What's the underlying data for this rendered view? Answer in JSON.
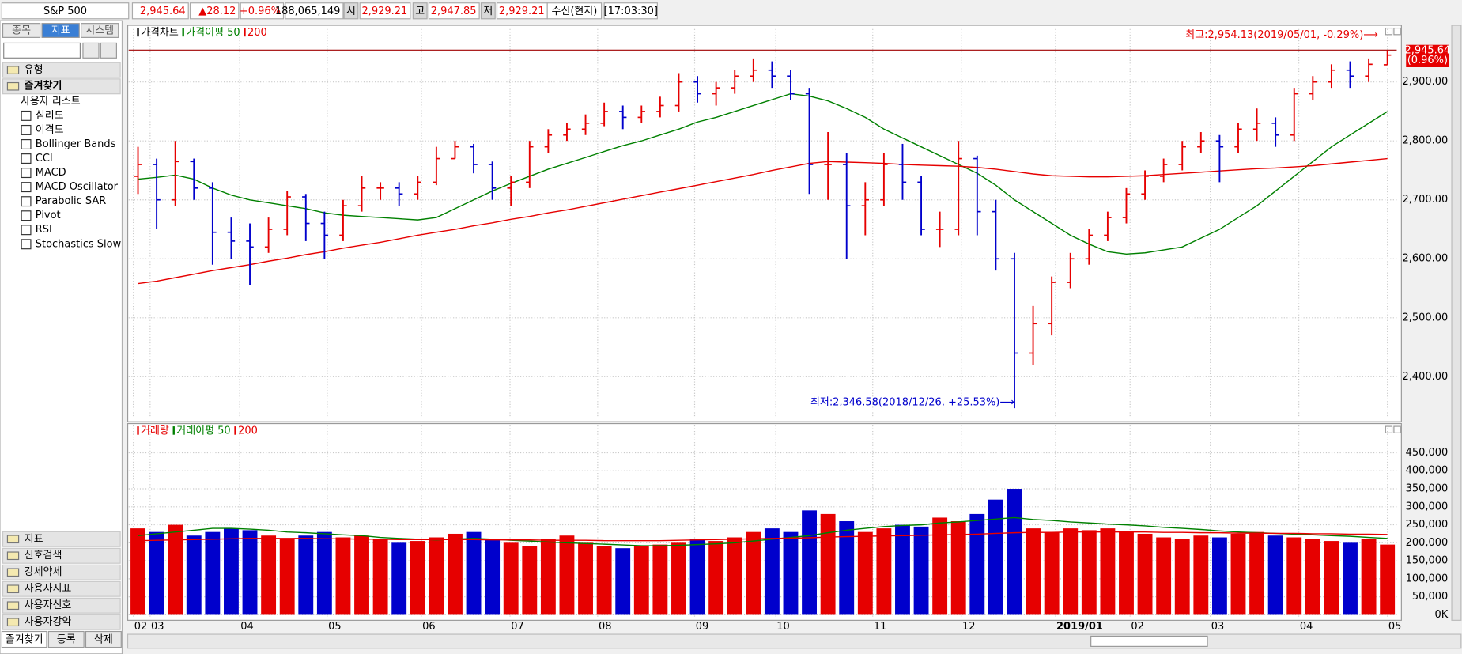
{
  "toolbar": {
    "symbol": "S&P 500",
    "price": "2,945.64",
    "change": "▲28.12",
    "pct": "+0.96%",
    "volume": "188,065,149",
    "open_label": "시",
    "open": "2,929.21",
    "high_label": "고",
    "high": "2,947.85",
    "low_label": "저",
    "low": "2,929.21",
    "status": "수신(현지)",
    "time": "[17:03:30]"
  },
  "sidebar": {
    "tabs": [
      "종목",
      "지표",
      "시스템"
    ],
    "groups_top": [
      "유형",
      "즐겨찾기"
    ],
    "list_title": "사용자 리스트",
    "items": [
      "심리도",
      "이격도",
      "Bollinger Bands",
      "CCI",
      "MACD",
      "MACD Oscillator",
      "Parabolic SAR",
      "Pivot",
      "RSI",
      "Stochastics Slow"
    ],
    "groups_bottom": [
      "지표",
      "신호검색",
      "강세약세",
      "사용자지표",
      "사용자신호",
      "사용자강약"
    ],
    "bottom_tabs": [
      "즐겨찾기",
      "등록",
      "삭제"
    ]
  },
  "chart_data": [
    {
      "type": "ohlc",
      "up_color": "#e60000",
      "down_color": "#0000cc",
      "grid": true,
      "xlim": [
        0,
        68
      ],
      "ylim": [
        2330,
        2974
      ],
      "yticks": [
        {
          "value": 2400,
          "label": "2,400.00"
        },
        {
          "value": 2500,
          "label": "2,500.00"
        },
        {
          "value": 2600,
          "label": "2,600.00"
        },
        {
          "value": 2700,
          "label": "2,700.00"
        },
        {
          "value": 2800,
          "label": "2,800.00"
        },
        {
          "value": 2900,
          "label": "2,900.00"
        }
      ],
      "xticks": [
        {
          "value": 0.25,
          "label": "02"
        },
        {
          "value": 1.15,
          "label": "03"
        },
        {
          "value": 5.95,
          "label": "04"
        },
        {
          "value": 10.65,
          "label": "05"
        },
        {
          "value": 15.7,
          "label": "06"
        },
        {
          "value": 20.45,
          "label": "07"
        },
        {
          "value": 25.15,
          "label": "08"
        },
        {
          "value": 30.35,
          "label": "09"
        },
        {
          "value": 34.7,
          "label": "10"
        },
        {
          "value": 39.9,
          "label": "11"
        },
        {
          "value": 44.65,
          "label": "12"
        },
        {
          "value": 49.7,
          "label": "2019/01"
        },
        {
          "value": 53.7,
          "label": "02"
        },
        {
          "value": 58,
          "label": "03"
        },
        {
          "value": 62.75,
          "label": "04"
        },
        {
          "value": 67.5,
          "label": "05"
        }
      ],
      "high_line": 2954.13,
      "high_line_color": "#a00000",
      "last_price_label": "2,945.64",
      "last_pct_label": "(0.96%)",
      "annotations": [
        {
          "text": "최고:2,954.13(2019/05/01, -0.29%)⟶",
          "color": "#e60000"
        },
        {
          "text": "최저:2,346.58(2018/12/26, +25.53%)⟶",
          "color": "#0000cc"
        }
      ],
      "series": [
        {
          "name": "가격차트",
          "color": "#000000",
          "open": [
            2740,
            2760,
            2700,
            2765,
            2720,
            2645,
            2630,
            2620,
            2650,
            2705,
            2660,
            2640,
            2690,
            2720,
            2720,
            2710,
            2730,
            2770,
            2790,
            2760,
            2720,
            2730,
            2790,
            2810,
            2820,
            2830,
            2850,
            2840,
            2850,
            2860,
            2900,
            2880,
            2890,
            2910,
            2920,
            2910,
            2880,
            2760,
            2760,
            2690,
            2700,
            2760,
            2730,
            2650,
            2650,
            2770,
            2680,
            2600,
            2440,
            2490,
            2560,
            2600,
            2640,
            2670,
            2710,
            2740,
            2760,
            2790,
            2800,
            2790,
            2820,
            2830,
            2810,
            2880,
            2900,
            2920,
            2910,
            2929.21
          ],
          "high": [
            2790,
            2770,
            2800,
            2770,
            2730,
            2670,
            2660,
            2670,
            2715,
            2710,
            2680,
            2700,
            2740,
            2730,
            2730,
            2740,
            2790,
            2800,
            2795,
            2765,
            2740,
            2800,
            2820,
            2830,
            2845,
            2865,
            2860,
            2860,
            2875,
            2915,
            2910,
            2900,
            2920,
            2940,
            2935,
            2920,
            2890,
            2815,
            2780,
            2730,
            2780,
            2795,
            2740,
            2680,
            2800,
            2775,
            2700,
            2610,
            2520,
            2570,
            2610,
            2650,
            2680,
            2720,
            2750,
            2770,
            2800,
            2815,
            2810,
            2830,
            2855,
            2840,
            2890,
            2910,
            2930,
            2935,
            2940,
            2954.13
          ],
          "low": [
            2710,
            2650,
            2690,
            2700,
            2590,
            2600,
            2555,
            2610,
            2640,
            2630,
            2600,
            2630,
            2680,
            2700,
            2690,
            2700,
            2725,
            2770,
            2745,
            2700,
            2690,
            2720,
            2780,
            2800,
            2810,
            2825,
            2820,
            2830,
            2840,
            2850,
            2865,
            2860,
            2880,
            2900,
            2890,
            2870,
            2710,
            2700,
            2600,
            2640,
            2690,
            2700,
            2640,
            2620,
            2640,
            2640,
            2580,
            2346.58,
            2420,
            2470,
            2550,
            2590,
            2630,
            2660,
            2700,
            2730,
            2750,
            2780,
            2730,
            2780,
            2800,
            2790,
            2800,
            2870,
            2890,
            2890,
            2900,
            2929.21
          ],
          "close": [
            2760,
            2700,
            2765,
            2720,
            2645,
            2630,
            2620,
            2650,
            2705,
            2660,
            2640,
            2690,
            2720,
            2720,
            2710,
            2730,
            2770,
            2790,
            2760,
            2720,
            2730,
            2790,
            2810,
            2820,
            2830,
            2850,
            2840,
            2850,
            2860,
            2900,
            2880,
            2890,
            2910,
            2920,
            2910,
            2880,
            2760,
            2760,
            2690,
            2700,
            2760,
            2730,
            2650,
            2650,
            2770,
            2680,
            2600,
            2440,
            2490,
            2560,
            2600,
            2640,
            2670,
            2710,
            2740,
            2760,
            2790,
            2800,
            2790,
            2820,
            2830,
            2810,
            2880,
            2900,
            2920,
            2910,
            2930,
            2945.64
          ]
        },
        {
          "name": "가격이평 50",
          "color": "#008000",
          "values": [
            2735,
            2738,
            2742,
            2735,
            2720,
            2708,
            2700,
            2695,
            2690,
            2685,
            2678,
            2674,
            2672,
            2670,
            2668,
            2666,
            2670,
            2685,
            2700,
            2715,
            2728,
            2740,
            2752,
            2762,
            2772,
            2782,
            2792,
            2800,
            2810,
            2820,
            2832,
            2840,
            2850,
            2860,
            2870,
            2880,
            2876,
            2868,
            2855,
            2840,
            2820,
            2805,
            2790,
            2775,
            2760,
            2745,
            2725,
            2700,
            2680,
            2660,
            2640,
            2625,
            2612,
            2608,
            2610,
            2615,
            2620,
            2635,
            2650,
            2670,
            2690,
            2715,
            2740,
            2765,
            2790,
            2810,
            2830,
            2850
          ]
        },
        {
          "name": "200",
          "color": "#e60000",
          "values": [
            2558,
            2562,
            2568,
            2574,
            2580,
            2585,
            2590,
            2596,
            2601,
            2607,
            2612,
            2618,
            2623,
            2628,
            2634,
            2640,
            2645,
            2650,
            2656,
            2661,
            2667,
            2672,
            2678,
            2683,
            2689,
            2695,
            2701,
            2707,
            2713,
            2719,
            2725,
            2731,
            2737,
            2743,
            2750,
            2756,
            2762,
            2765,
            2764,
            2763,
            2762,
            2760,
            2759,
            2758,
            2757,
            2755,
            2752,
            2748,
            2744,
            2741,
            2740,
            2739,
            2739,
            2740,
            2741,
            2743,
            2745,
            2747,
            2749,
            2751,
            2753,
            2754,
            2756,
            2758,
            2761,
            2764,
            2767,
            2770
          ]
        }
      ]
    },
    {
      "type": "bar",
      "grid": true,
      "xlim": [
        0,
        68
      ],
      "ylim": [
        -10000,
        500000
      ],
      "yticks": [
        {
          "value": 0,
          "label": "0K"
        },
        {
          "value": 50000,
          "label": "50,000"
        },
        {
          "value": 100000,
          "label": "100,000"
        },
        {
          "value": 150000,
          "label": "150,000"
        },
        {
          "value": 200000,
          "label": "200,000"
        },
        {
          "value": 250000,
          "label": "250,000"
        },
        {
          "value": 300000,
          "label": "300,000"
        },
        {
          "value": 350000,
          "label": "350,000"
        },
        {
          "value": 400000,
          "label": "400,000"
        },
        {
          "value": 450000,
          "label": "450,000"
        }
      ],
      "series": [
        {
          "name": "거래량",
          "color": "#e60000",
          "values": [
            240000,
            230000,
            250000,
            220000,
            230000,
            240000,
            235000,
            220000,
            210000,
            220000,
            230000,
            215000,
            220000,
            210000,
            200000,
            205000,
            215000,
            225000,
            230000,
            210000,
            200000,
            190000,
            210000,
            220000,
            200000,
            190000,
            185000,
            190000,
            195000,
            200000,
            210000,
            205000,
            215000,
            230000,
            240000,
            230000,
            290000,
            280000,
            260000,
            230000,
            240000,
            250000,
            245000,
            270000,
            260000,
            280000,
            320000,
            350000,
            240000,
            230000,
            240000,
            235000,
            240000,
            230000,
            225000,
            215000,
            210000,
            220000,
            215000,
            225000,
            230000,
            220000,
            215000,
            210000,
            205000,
            200000,
            210000,
            195000
          ]
        },
        {
          "name": "거래이평 50",
          "color": "#008000",
          "values": [
            220000,
            225000,
            230000,
            235000,
            240000,
            240000,
            238000,
            235000,
            230000,
            228000,
            225000,
            222000,
            220000,
            215000,
            212000,
            210000,
            208000,
            210000,
            212000,
            210000,
            207000,
            205000,
            202000,
            200000,
            198000,
            196000,
            194000,
            192000,
            192000,
            193000,
            195000,
            197000,
            200000,
            205000,
            210000,
            215000,
            220000,
            228000,
            235000,
            240000,
            245000,
            248000,
            250000,
            255000,
            258000,
            262000,
            266000,
            270000,
            265000,
            262000,
            258000,
            255000,
            252000,
            250000,
            247000,
            243000,
            240000,
            237000,
            233000,
            230000,
            228000,
            226000,
            224000,
            222000,
            220000,
            218000,
            215000,
            212000
          ]
        },
        {
          "name": "200",
          "color": "#e60000",
          "values": [
            206000,
            207000,
            208000,
            209000,
            210000,
            211000,
            212000,
            212000,
            212000,
            212000,
            211000,
            211000,
            210000,
            210000,
            209000,
            209000,
            209000,
            209000,
            209000,
            208000,
            208000,
            208000,
            207000,
            207000,
            207000,
            206000,
            206000,
            206000,
            206000,
            207000,
            208000,
            209000,
            210000,
            211000,
            212000,
            213000,
            214000,
            216000,
            217000,
            218000,
            219000,
            220000,
            221000,
            222000,
            223000,
            224000,
            226000,
            228000,
            229000,
            229000,
            230000,
            230000,
            230000,
            230000,
            230000,
            229000,
            229000,
            228000,
            228000,
            227000,
            227000,
            226000,
            226000,
            225000,
            225000,
            224000,
            224000,
            223000
          ]
        }
      ]
    }
  ]
}
